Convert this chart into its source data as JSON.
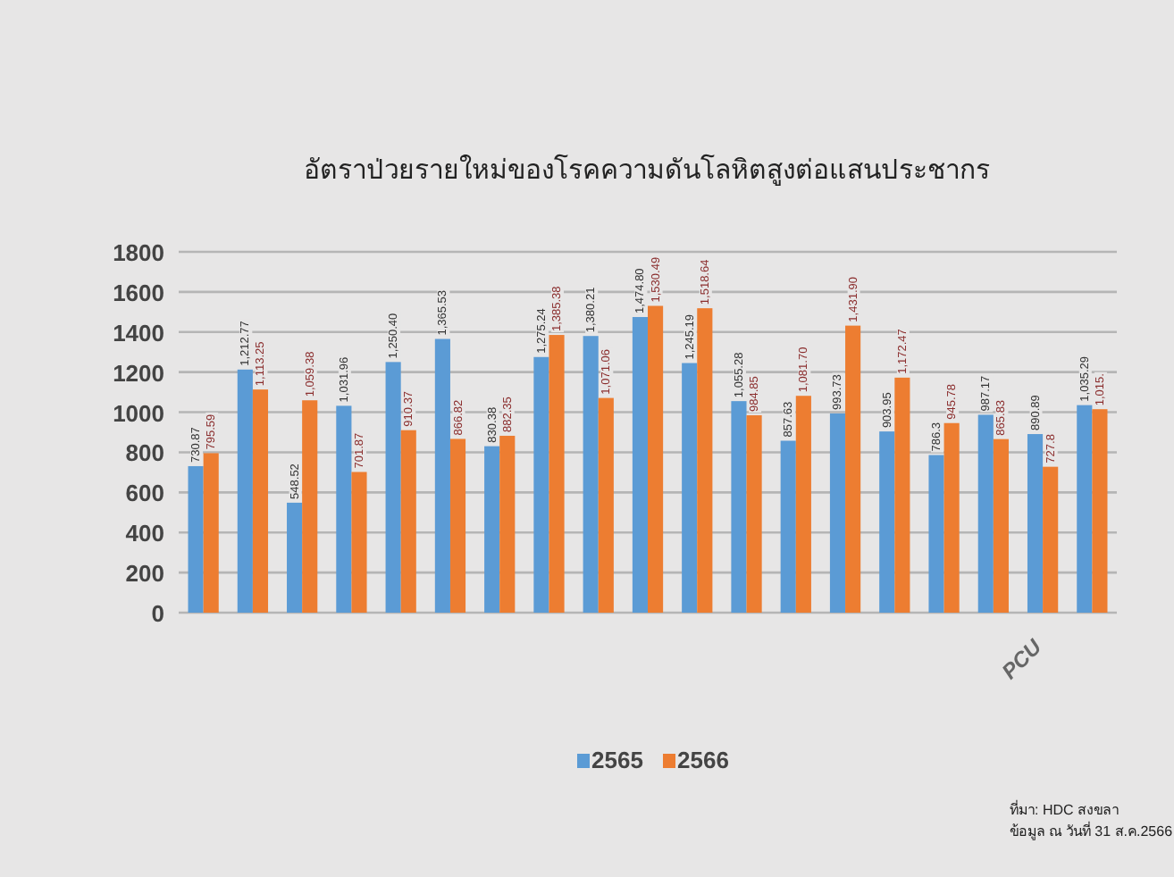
{
  "chart_data": {
    "type": "bar",
    "title": "อัตราป่วยรายใหม่ของโรคความดันโลหิตสูงต่อแสนประชากร",
    "categories": [
      null,
      null,
      null,
      null,
      null,
      null,
      null,
      null,
      null,
      null,
      null,
      null,
      null,
      null,
      null,
      null,
      null,
      "PCU",
      null
    ],
    "series": [
      {
        "name": "2565",
        "color": "#5b9bd5",
        "values": [
          730.87,
          1212.77,
          548.52,
          1031.96,
          1250.4,
          1365.53,
          830.38,
          1275.24,
          1380.21,
          1474.8,
          1245.19,
          1055.28,
          857.63,
          993.73,
          903.95,
          786.3,
          987.17,
          890.89,
          1035.29
        ],
        "value_labels": [
          "730.87",
          "1,212.77",
          "548.52",
          "1,031.96",
          "1,250.40",
          "1,365.53",
          "830.38",
          "1,275.24",
          "1,380.21",
          "1,474.80",
          "1,245.19",
          "1,055.28",
          "857.63",
          "993.73",
          "903.95",
          "786.3",
          "987.17",
          "890.89",
          "1,035.29"
        ]
      },
      {
        "name": "2566",
        "color": "#ed7d31",
        "values": [
          795.59,
          1113.25,
          1059.38,
          701.87,
          910.37,
          866.82,
          882.35,
          1385.38,
          1071.06,
          1530.49,
          1518.64,
          984.85,
          1081.7,
          1431.9,
          1172.47,
          945.78,
          865.83,
          727.8,
          1015
        ],
        "value_labels": [
          "795.59",
          "1,113.25",
          "1,059.38",
          "701.87",
          "910.37",
          "866.82",
          "882.35",
          "1,385.38",
          "1,071.06",
          "1,530.49",
          "1,518.64",
          "984.85",
          "1,081.70",
          "1,431.90",
          "1,172.47",
          "945.78",
          "865.83",
          "727.8",
          "1,015."
        ]
      }
    ],
    "ylim": [
      0,
      1800
    ],
    "yticks": [
      0,
      200,
      400,
      600,
      800,
      1000,
      1200,
      1400,
      1600,
      1800
    ],
    "grid": "y",
    "legend": "bottom",
    "annotations": [
      "ที่มา: HDC สงขลา",
      "ข้อมูล ณ วันที่ 31 ส.ค.2566"
    ]
  }
}
